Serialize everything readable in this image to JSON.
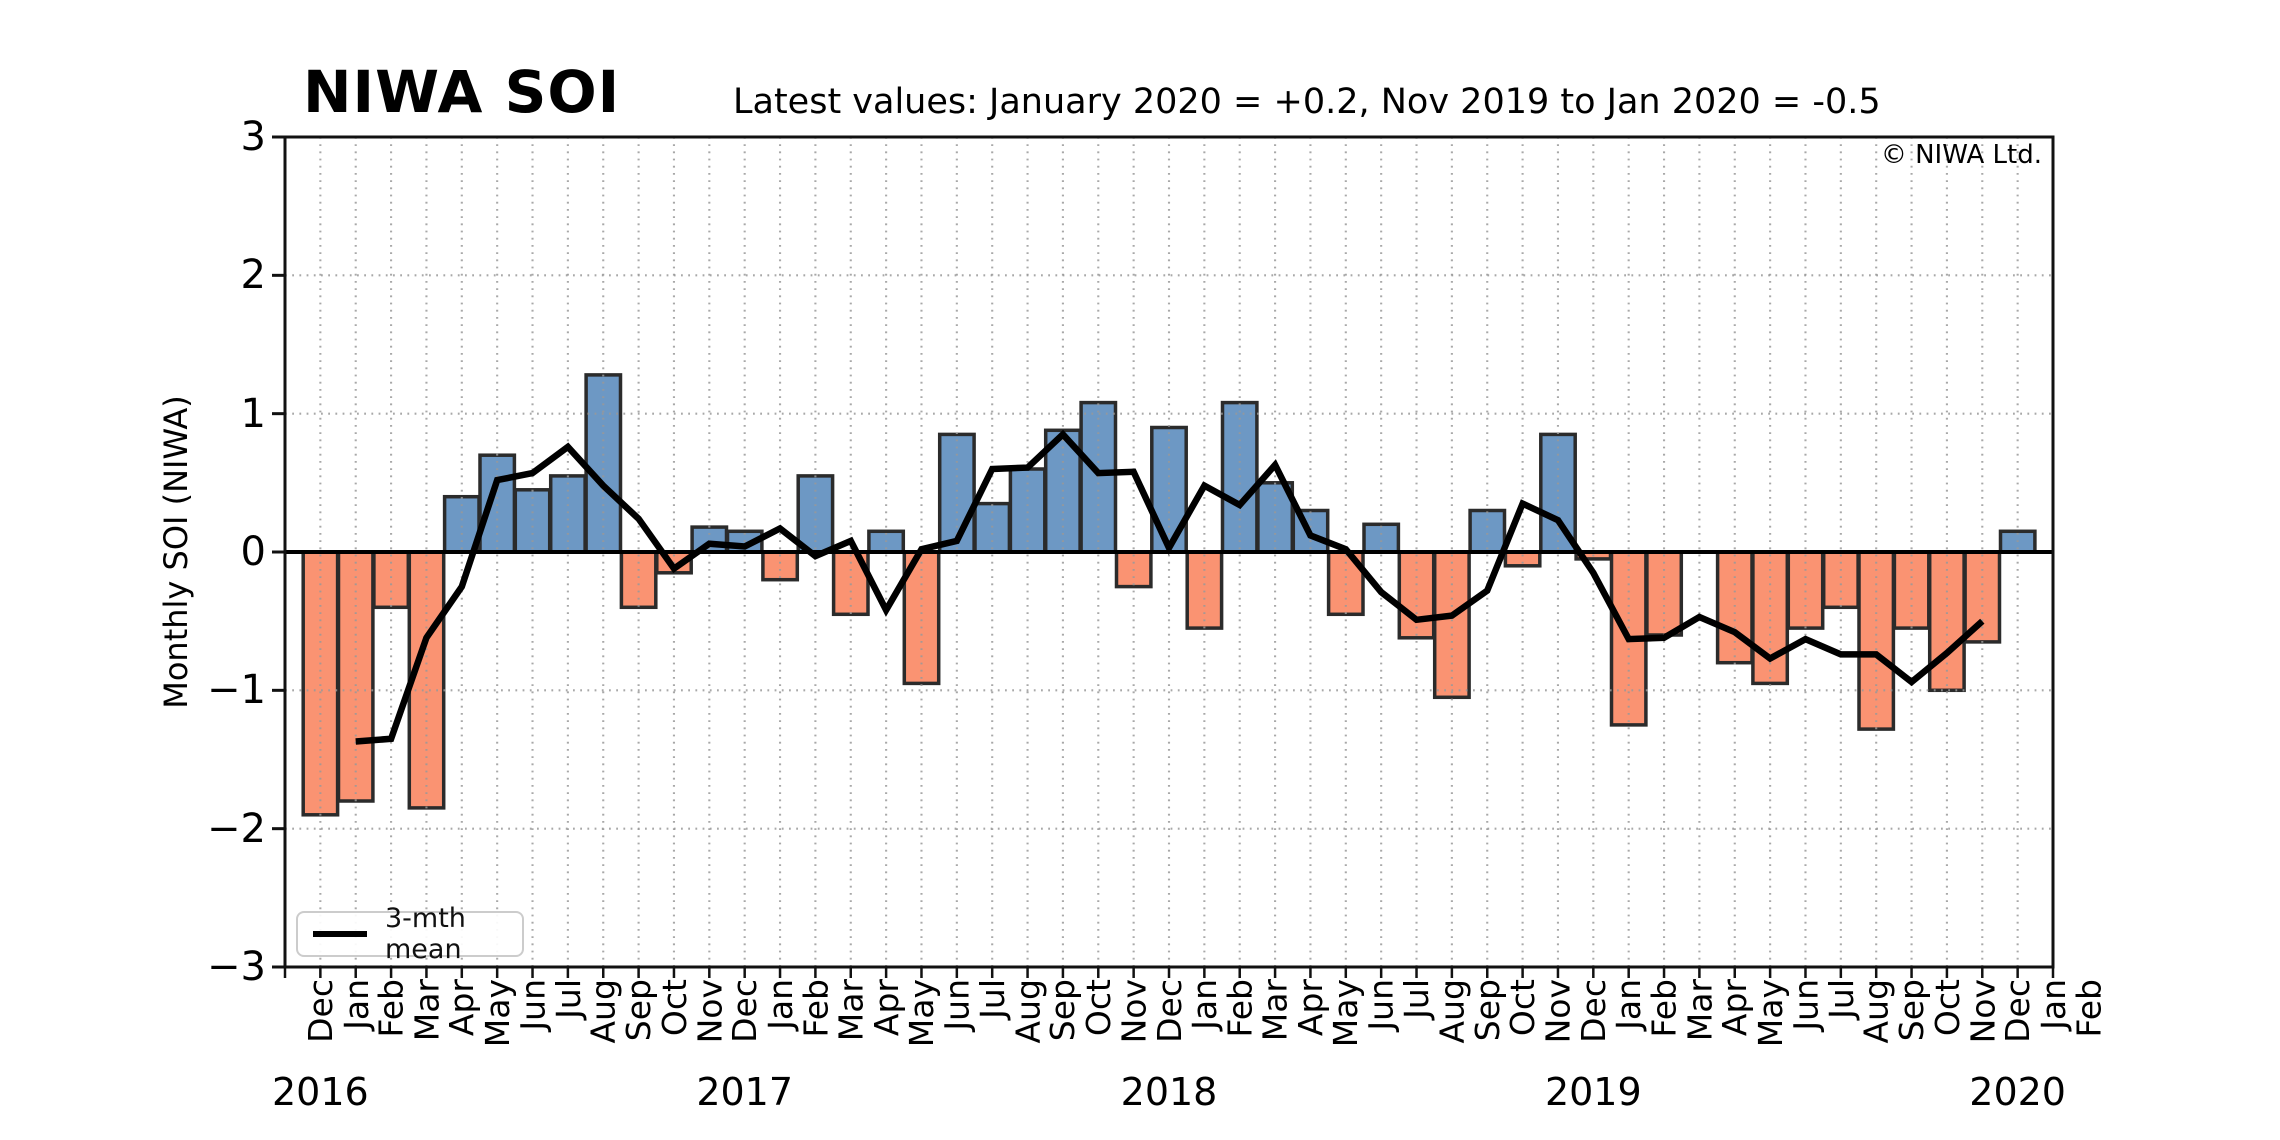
{
  "title": "NIWA SOI",
  "subtitle": "Latest values: January 2020 = +0.2, Nov 2019 to Jan 2020 = -0.5",
  "copyright": "© NIWA Ltd.",
  "y_axis_label": "Monthly SOI (NIWA)",
  "legend": {
    "mean_line_label": "3-mth mean"
  },
  "colors": {
    "positive_bar": "#6d98c4",
    "negative_bar": "#fa9372",
    "bar_edge": "#2b2b2b",
    "mean_line": "#000000",
    "grid": "#999999",
    "axis": "#111111"
  },
  "chart_data": {
    "type": "bar",
    "ylim": [
      -3,
      3
    ],
    "grid": "dotted, every month vertical, every integer horizontal",
    "legend_position": "lower left",
    "y_ticks": [
      {
        "label": "3",
        "value": 3
      },
      {
        "label": "2",
        "value": 2
      },
      {
        "label": "1",
        "value": 1
      },
      {
        "label": "0",
        "value": 0
      },
      {
        "label": "−1",
        "value": -1
      },
      {
        "label": "−2",
        "value": -2
      },
      {
        "label": "−3",
        "value": -3
      }
    ],
    "x_tick_labels": [
      "Dec",
      "Jan",
      "Feb",
      "Mar",
      "Apr",
      "May",
      "Jun",
      "Jul",
      "Aug",
      "Sep",
      "Oct",
      "Nov",
      "Dec",
      "Jan",
      "Feb",
      "Mar",
      "Apr",
      "May",
      "Jun",
      "Jul",
      "Aug",
      "Sep",
      "Oct",
      "Nov",
      "Dec",
      "Jan",
      "Feb",
      "Mar",
      "Apr",
      "May",
      "Jun",
      "Jul",
      "Aug",
      "Sep",
      "Oct",
      "Nov",
      "Dec",
      "Jan",
      "Feb",
      "Mar",
      "Apr",
      "May",
      "Jun",
      "Jul",
      "Aug",
      "Sep",
      "Oct",
      "Nov",
      "Dec",
      "Jan",
      "Feb"
    ],
    "year_labels": [
      {
        "label": "2016",
        "tick_index": 1
      },
      {
        "label": "2017",
        "tick_index": 13
      },
      {
        "label": "2018",
        "tick_index": 25
      },
      {
        "label": "2019",
        "tick_index": 37
      },
      {
        "label": "2020",
        "tick_index": 49
      }
    ],
    "bars": {
      "series_name": "Monthly SOI",
      "first_month": "Jan 2016",
      "last_month": "Jan 2020",
      "start_tick_index": 1,
      "values": [
        -1.9,
        -1.8,
        -0.4,
        -1.85,
        0.4,
        0.7,
        0.45,
        0.55,
        1.28,
        -0.4,
        -0.15,
        0.18,
        0.15,
        -0.2,
        0.55,
        -0.45,
        0.15,
        -0.95,
        0.85,
        0.35,
        0.6,
        0.88,
        1.08,
        -0.25,
        0.9,
        -0.55,
        1.08,
        0.5,
        0.3,
        -0.45,
        0.2,
        -0.62,
        -1.05,
        0.3,
        -0.1,
        0.85,
        -0.05,
        -1.25,
        -0.6,
        0.0,
        -0.8,
        -0.95,
        -0.55,
        -0.4,
        -1.28,
        -0.55,
        -1.0,
        -0.65,
        0.15
      ]
    },
    "mean_line": {
      "series_name": "3-mth mean",
      "first_month": "Feb 2016",
      "last_month": "Dec 2019",
      "start_tick_index": 2,
      "values": [
        -1.37,
        -1.35,
        -0.62,
        -0.25,
        0.52,
        0.57,
        0.76,
        0.48,
        0.24,
        -0.12,
        0.06,
        0.04,
        0.17,
        -0.03,
        0.08,
        -0.42,
        0.02,
        0.08,
        0.6,
        0.61,
        0.85,
        0.57,
        0.58,
        0.03,
        0.48,
        0.34,
        0.63,
        0.12,
        0.02,
        -0.29,
        -0.49,
        -0.46,
        -0.28,
        0.35,
        0.23,
        -0.15,
        -0.63,
        -0.62,
        -0.47,
        -0.58,
        -0.77,
        -0.63,
        -0.74,
        -0.74,
        -0.94,
        -0.73,
        -0.5
      ]
    }
  }
}
